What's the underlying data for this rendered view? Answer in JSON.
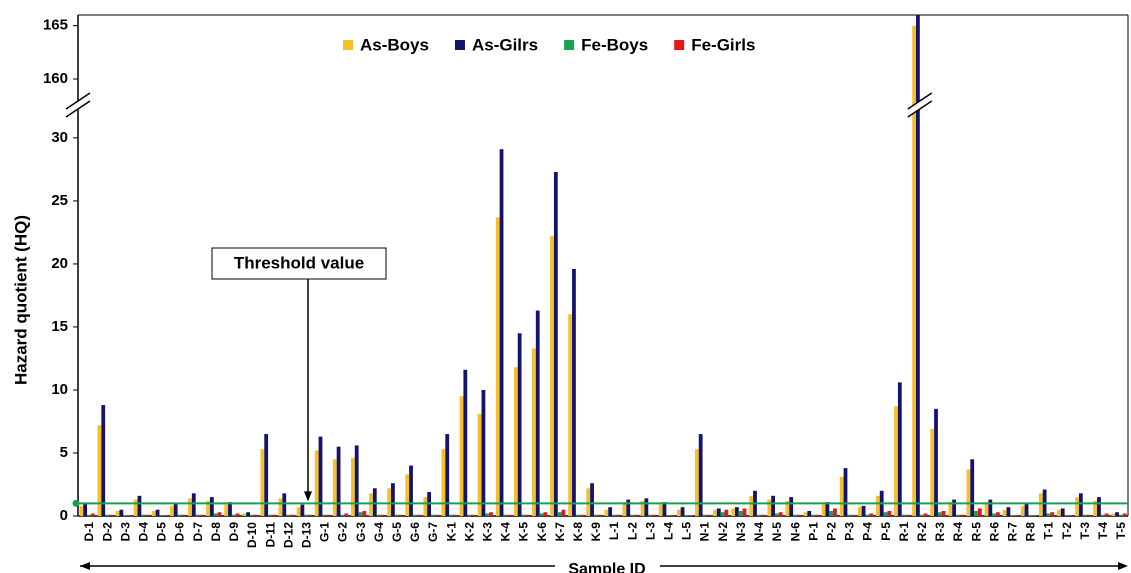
{
  "chart_data": {
    "type": "bar",
    "y_label": "Hazard quotient (HQ)",
    "x_label": "Sample ID",
    "categories": [
      "D-1",
      "D-2",
      "D-3",
      "D-4",
      "D-5",
      "D-6",
      "D-7",
      "D-8",
      "D-9",
      "D-10",
      "D-11",
      "D-12",
      "D-13",
      "G-1",
      "G-2",
      "G-3",
      "G-4",
      "G-5",
      "G-6",
      "G-7",
      "K-1",
      "K-2",
      "K-3",
      "K-4",
      "K-5",
      "K-6",
      "K-7",
      "K-8",
      "K-9",
      "L-1",
      "L-2",
      "L-3",
      "L-4",
      "L-5",
      "N-1",
      "N-2",
      "N-3",
      "N-4",
      "N-5",
      "N-6",
      "P-1",
      "P-2",
      "P-3",
      "P-4",
      "P-5",
      "R-1",
      "R-2",
      "R-3",
      "R-4",
      "R-5",
      "R-6",
      "R-7",
      "R-8",
      "T-1",
      "T-2",
      "T-3",
      "T-4",
      "T-5"
    ],
    "series": [
      {
        "name": "As-Boys",
        "color": "#f5c02a",
        "values": [
          0.8,
          7.2,
          0.4,
          1.3,
          0.4,
          0.8,
          1.4,
          1.2,
          0.9,
          0.2,
          5.3,
          1.4,
          0.7,
          5.2,
          4.5,
          4.6,
          1.8,
          2.2,
          3.3,
          1.5,
          5.3,
          9.5,
          8.1,
          23.7,
          11.8,
          13.3,
          22.2,
          16.0,
          2.2,
          0.5,
          1.1,
          1.2,
          0.9,
          0.5,
          5.3,
          0.5,
          0.6,
          1.6,
          1.3,
          1.2,
          0.3,
          0.9,
          3.1,
          0.7,
          1.6,
          8.7,
          165,
          6.9,
          1.1,
          3.7,
          1.1,
          0.5,
          0.8,
          1.8,
          0.5,
          1.5,
          1.2,
          0.2
        ]
      },
      {
        "name": "As-Gilrs",
        "color": "#14146e",
        "values": [
          1.0,
          8.8,
          0.5,
          1.6,
          0.5,
          1.0,
          1.8,
          1.5,
          1.1,
          0.3,
          6.5,
          1.8,
          0.9,
          6.3,
          5.5,
          5.6,
          2.2,
          2.6,
          4.0,
          1.9,
          6.5,
          11.6,
          10.0,
          29.1,
          14.5,
          16.3,
          27.3,
          19.6,
          2.6,
          0.7,
          1.3,
          1.4,
          1.1,
          0.7,
          6.5,
          0.6,
          0.7,
          2.0,
          1.6,
          1.5,
          0.4,
          1.1,
          3.8,
          0.8,
          2.0,
          10.6,
          166,
          8.5,
          1.3,
          4.5,
          1.3,
          0.7,
          1.0,
          2.1,
          0.6,
          1.8,
          1.5,
          0.3
        ]
      },
      {
        "name": "Fe-Boys",
        "color": "#1aa050",
        "values": [
          0.1,
          0.1,
          0.05,
          0.1,
          0.05,
          0.1,
          0.1,
          0.2,
          0.1,
          0.1,
          0.1,
          0.1,
          0.1,
          0.1,
          0.1,
          0.3,
          0.1,
          0.1,
          0.1,
          0.1,
          0.1,
          0.1,
          0.2,
          0.1,
          0.1,
          0.2,
          0.3,
          0.1,
          0.1,
          0.1,
          0.1,
          0.1,
          0.05,
          0.05,
          0.1,
          0.3,
          0.4,
          0.1,
          0.2,
          0.1,
          0.1,
          0.4,
          0.1,
          0.1,
          0.3,
          0.1,
          0.1,
          0.3,
          0.1,
          0.4,
          0.2,
          0.05,
          0.05,
          0.2,
          0.05,
          0.1,
          0.1,
          0.1
        ]
      },
      {
        "name": "Fe-Girls",
        "color": "#e8161b",
        "values": [
          0.2,
          0.1,
          0.05,
          0.1,
          0.05,
          0.1,
          0.1,
          0.3,
          0.2,
          0.1,
          0.1,
          0.1,
          0.1,
          0.1,
          0.2,
          0.4,
          0.1,
          0.1,
          0.1,
          0.1,
          0.1,
          0.1,
          0.3,
          0.1,
          0.1,
          0.3,
          0.5,
          0.1,
          0.1,
          0.1,
          0.1,
          0.1,
          0.05,
          0.05,
          0.1,
          0.5,
          0.6,
          0.1,
          0.3,
          0.1,
          0.1,
          0.6,
          0.1,
          0.2,
          0.4,
          0.1,
          0.2,
          0.4,
          0.1,
          0.6,
          0.3,
          0.05,
          0.05,
          0.3,
          0.05,
          0.1,
          0.2,
          0.2
        ]
      }
    ],
    "ylim": [
      0,
      166
    ],
    "axis_break": [
      31.5,
      158.5
    ],
    "yticks": [
      0,
      5,
      10,
      15,
      20,
      25,
      30,
      160,
      165
    ],
    "threshold": {
      "value": 1,
      "label": "Threshold value",
      "color": "#1aa050"
    }
  }
}
